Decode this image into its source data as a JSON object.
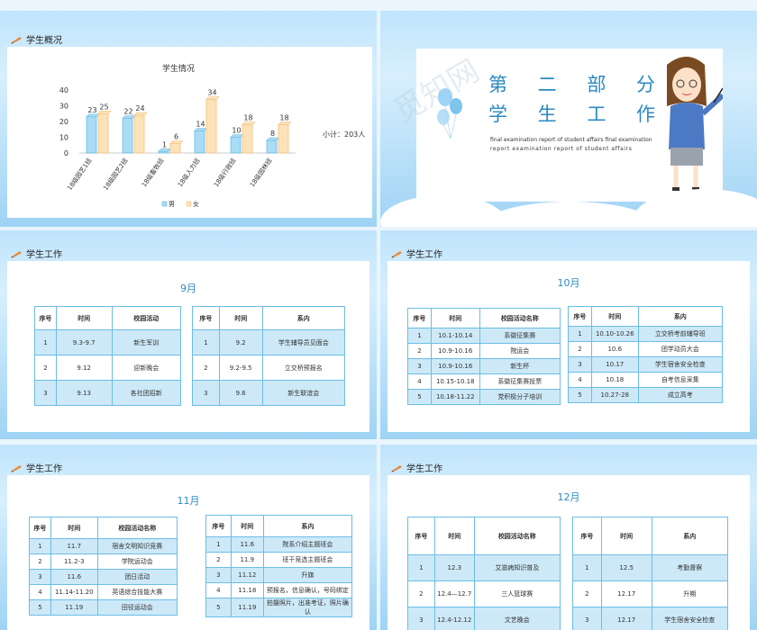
{
  "slides": {
    "overview": {
      "section": "学生概况",
      "total": "小计：203人",
      "chart_data": {
        "type": "bar",
        "title": "学生情况",
        "categories": [
          "18级园艺1班",
          "18级园艺2班",
          "18级畜牧班",
          "18级人力班",
          "18级行政班",
          "18级园林班"
        ],
        "series": [
          {
            "name": "男",
            "values": [
              23,
              22,
              1,
              14,
              10,
              8
            ]
          },
          {
            "name": "女",
            "values": [
              25,
              24,
              6,
              34,
              18,
              18
            ]
          }
        ],
        "ylim": [
          0,
          40
        ],
        "yticks": [
          0,
          10,
          20,
          30,
          40
        ],
        "legend": "bottom",
        "colors": [
          "#a9dcf5",
          "#fde2b8"
        ]
      }
    },
    "title": {
      "line1": [
        "第",
        "二",
        "部",
        "分"
      ],
      "line2": [
        "学",
        "生",
        "工",
        "作"
      ],
      "sub1": "final examination report of student affairs final examination",
      "sub2": "report examination report of student affairs",
      "watermark": "觅知网"
    },
    "sep": {
      "section": "学生工作",
      "month": "9月",
      "t1": {
        "headers": [
          "序号",
          "时间",
          "校园活动"
        ],
        "rows": [
          [
            "1",
            "9.3-9.7",
            "新生军训"
          ],
          [
            "2",
            "9.12",
            "迎新晚会"
          ],
          [
            "3",
            "9.13",
            "各社团招新"
          ]
        ]
      },
      "t2": {
        "headers": [
          "序号",
          "时间",
          "系内"
        ],
        "rows": [
          [
            "1",
            "9.2",
            "学生辅导员见面会"
          ],
          [
            "2",
            "9.2-9.5",
            "立交桥预报名"
          ],
          [
            "3",
            "9.6",
            "新生联谊会"
          ]
        ]
      }
    },
    "oct": {
      "section": "学生工作",
      "month": "10月",
      "t1": {
        "headers": [
          "序号",
          "时间",
          "校园活动名称"
        ],
        "rows": [
          [
            "1",
            "10.1-10.14",
            "系徽征集赛"
          ],
          [
            "2",
            "10.9-10.16",
            "院运会"
          ],
          [
            "3",
            "10.9-10.16",
            "新生杯"
          ],
          [
            "4",
            "10.15-10.18",
            "系徽征集赛投票"
          ],
          [
            "5",
            "10.18-11.22",
            "党积极分子培训"
          ]
        ]
      },
      "t2": {
        "headers": [
          "序号",
          "时间",
          "系内"
        ],
        "rows": [
          [
            "1",
            "10.10-10.26",
            "立交桥考前辅导班"
          ],
          [
            "2",
            "10.6",
            "团学动员大会"
          ],
          [
            "3",
            "10.17",
            "学生宿舍安全检查"
          ],
          [
            "4",
            "10.18",
            "自考信息采集"
          ],
          [
            "5",
            "10.27-28",
            "成立高考"
          ]
        ]
      }
    },
    "nov": {
      "section": "学生工作",
      "month": "11月",
      "t1": {
        "headers": [
          "序号",
          "时间",
          "校园活动名称"
        ],
        "rows": [
          [
            "1",
            "11.7",
            "宿舍文明知识竞赛"
          ],
          [
            "2",
            "11.2-3",
            "学院运动会"
          ],
          [
            "3",
            "11.6",
            "团日活动"
          ],
          [
            "4",
            "11.14-11.20",
            "英语综合技能大赛"
          ],
          [
            "5",
            "11.19",
            "田径运动会"
          ]
        ]
      },
      "t2": {
        "headers": [
          "序号",
          "时间",
          "系内"
        ],
        "rows": [
          [
            "1",
            "11.6",
            "院系介绍主题班会"
          ],
          [
            "2",
            "11.9",
            "班干竞选主题班会"
          ],
          [
            "3",
            "11.12",
            "升旗"
          ],
          [
            "4",
            "11.18",
            "预报名，信息确认，号码绑定"
          ],
          [
            "5",
            "11.19",
            "拍摄照片，出准考证，照片确认"
          ]
        ]
      }
    },
    "dec": {
      "section": "学生工作",
      "month": "12月",
      "t1": {
        "headers": [
          "序号",
          "时间",
          "校园活动名称"
        ],
        "rows": [
          [
            "1",
            "12.3",
            "艾滋病知识普及"
          ],
          [
            "2",
            "12.4—12.7",
            "三人篮球赛"
          ],
          [
            "3",
            "12.4-12.12",
            "文艺晚会"
          ]
        ]
      },
      "t2": {
        "headers": [
          "序号",
          "时间",
          "系内"
        ],
        "rows": [
          [
            "1",
            "12.5",
            "考勤督察"
          ],
          [
            "2",
            "12.17",
            "升期"
          ],
          [
            "3",
            "12.17",
            "学生宿舍安全检查"
          ]
        ]
      }
    }
  }
}
